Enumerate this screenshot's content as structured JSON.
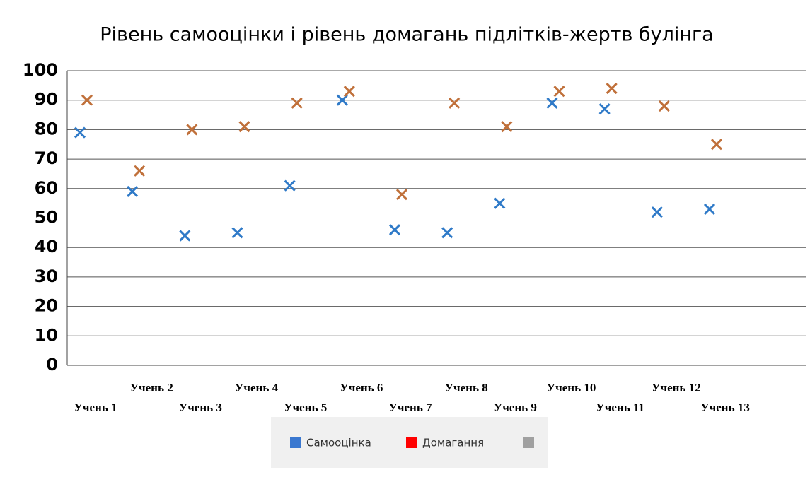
{
  "chart_data": {
    "type": "scatter",
    "title": "Рівень самооцінки і рівень домагань підлітків-жертв булінга",
    "categories": [
      "Учень 1",
      "Учень 2",
      "Учень 3",
      "Учень 4",
      "Учень 5",
      "Учень 6",
      "Учень 7",
      "Учень 8",
      "Учень 9",
      "Учень 10",
      "Учень 11",
      "Учень 12",
      "Учень 13"
    ],
    "series": [
      {
        "name": "Самооцінка",
        "color": "#2f7ac8",
        "legend_color": "#3a78d0",
        "values": [
          79,
          59,
          44,
          45,
          61,
          90,
          46,
          45,
          55,
          89,
          87,
          52,
          53
        ]
      },
      {
        "name": "Домагання",
        "color": "#c0703a",
        "legend_color": "#ff0000",
        "values": [
          90,
          66,
          80,
          81,
          89,
          93,
          58,
          89,
          81,
          93,
          94,
          88,
          75
        ]
      }
    ],
    "ylim": [
      0,
      100
    ],
    "yticks": [
      0,
      10,
      20,
      30,
      40,
      50,
      60,
      70,
      80,
      90,
      100
    ],
    "grid": true
  }
}
